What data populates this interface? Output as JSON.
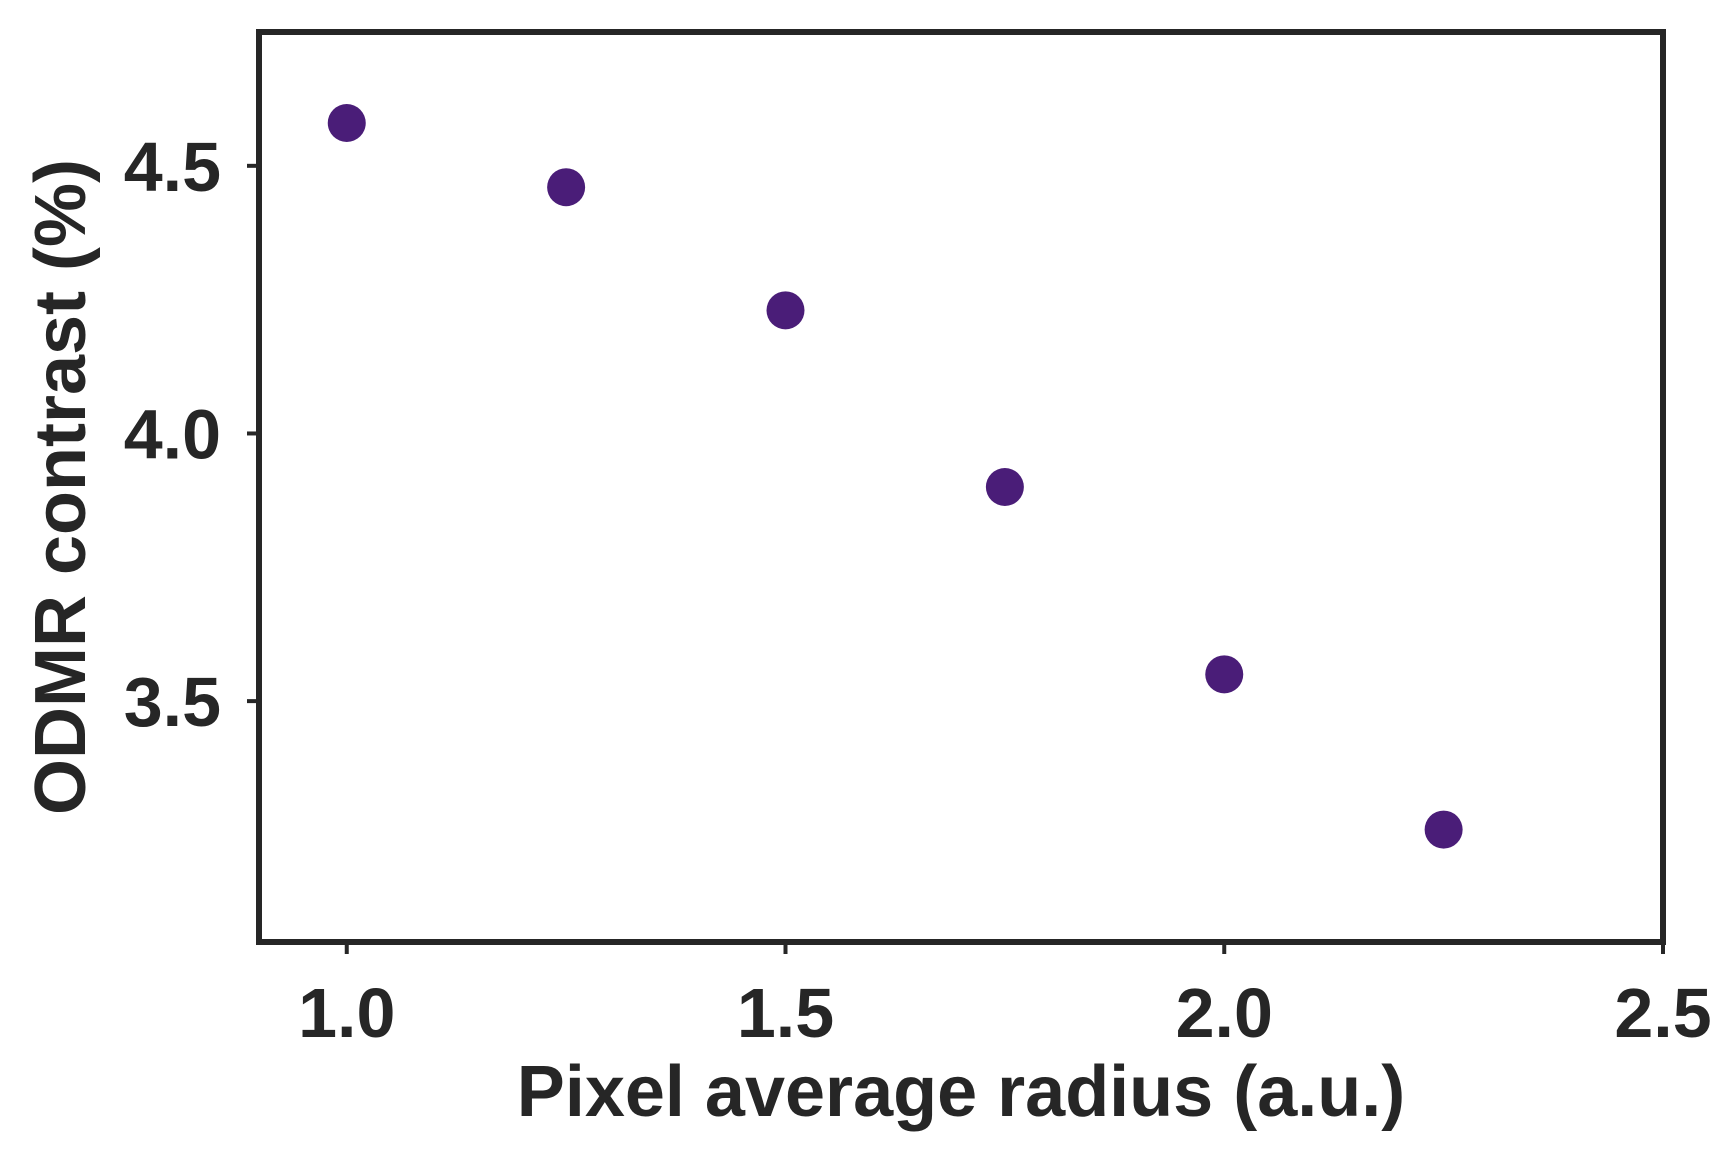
{
  "chart_data": {
    "type": "scatter",
    "title": "",
    "xlabel": "Pixel average radius (a.u.)",
    "ylabel": "ODMR contrast (%)",
    "xlim": [
      0.9,
      2.5
    ],
    "ylim": [
      3.05,
      4.75
    ],
    "xticks": [
      1.0,
      1.5,
      2.0,
      2.5
    ],
    "xtick_labels": [
      "1.0",
      "1.5",
      "2.0",
      "2.5"
    ],
    "yticks": [
      3.5,
      4.0,
      4.5
    ],
    "ytick_labels": [
      "3.5",
      "4.0",
      "4.5"
    ],
    "grid": false,
    "legend": "none",
    "marker_color": "#4a1d78",
    "axis_color": "#262626",
    "series": [
      {
        "points": [
          {
            "x": 1.0,
            "y": 4.58
          },
          {
            "x": 1.25,
            "y": 4.46
          },
          {
            "x": 1.5,
            "y": 4.23
          },
          {
            "x": 1.75,
            "y": 3.9
          },
          {
            "x": 2.0,
            "y": 3.55
          },
          {
            "x": 2.25,
            "y": 3.26
          }
        ]
      }
    ]
  }
}
